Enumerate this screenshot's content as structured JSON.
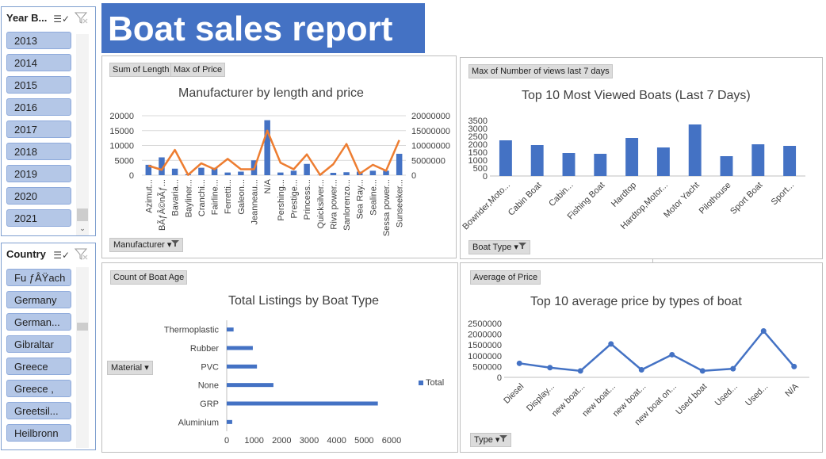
{
  "report_title": "Boat sales report",
  "slicers": {
    "year": {
      "header": "Year B...",
      "items": [
        "2013",
        "2014",
        "2015",
        "2016",
        "2017",
        "2018",
        "2019",
        "2020",
        "2021"
      ]
    },
    "country": {
      "header": "Country",
      "items": [
        "Fu ƒÂŸach",
        "Germany",
        "German...",
        "Gibraltar",
        "Greece",
        "Greece ,",
        "Greetsil...",
        "Heilbronn"
      ]
    }
  },
  "panels": {
    "manufacturer": {
      "value_buttons": [
        "Sum of Length",
        "Max of Price"
      ],
      "axis_button": "Manufacturer"
    },
    "views": {
      "value_buttons": [
        "Max of Number  of views last 7 days"
      ],
      "axis_button": "Boat Type"
    },
    "age": {
      "value_buttons": [
        "Count of Boat Age"
      ],
      "axis_button": "Material"
    },
    "price": {
      "value_buttons": [
        "Average of Price"
      ],
      "axis_button": "Type"
    }
  },
  "chart_data": [
    {
      "type": "bar",
      "title": "Manufacturer by length and price",
      "categories": [
        "Azimut...",
        "BÃƒÂ©nÃƒ...",
        "Bavaria...",
        "Bayliner...",
        "Cranchi...",
        "Fairline...",
        "Ferretti...",
        "Galeon...",
        "Jeanneau...",
        "N/A",
        "Pershing...",
        "Prestige...",
        "Princess...",
        "Quicksilver...",
        "Riva power...",
        "Sanlorenzo...",
        "Sea Ray...",
        "Sealine...",
        "Sessa power...",
        "Sunseeker..."
      ],
      "series": [
        {
          "name": "Sum of Length",
          "type": "bar",
          "axis": "left",
          "color": "#4472c4",
          "values": [
            3500,
            6000,
            2200,
            300,
            2500,
            2500,
            900,
            1200,
            5000,
            18500,
            900,
            1500,
            3800,
            100,
            800,
            1000,
            1200,
            1500,
            1500,
            7200
          ]
        },
        {
          "name": "Max of Price",
          "type": "line",
          "axis": "right",
          "color": "#ed7d31",
          "values": [
            3200000,
            1800000,
            8500000,
            100000,
            4000000,
            2000000,
            5500000,
            2000000,
            2000000,
            15000000,
            4200000,
            2000000,
            7000000,
            100000,
            3700000,
            10500000,
            500000,
            3500000,
            1500000,
            11800000
          ]
        }
      ],
      "yleft_ticks": [
        0,
        5000,
        10000,
        15000,
        20000
      ],
      "yright_ticks": [
        0,
        5000000,
        10000000,
        15000000,
        20000000
      ],
      "ylim_left": [
        0,
        20000
      ],
      "ylim_right": [
        0,
        20000000
      ]
    },
    {
      "type": "bar",
      "title": "Top 10 Most Viewed Boats (Last 7 Days)",
      "categories": [
        "Bowrider,Moto...",
        "Cabin Boat",
        "Cabin...",
        "Fishing Boat",
        "Hardtop",
        "Hardtop,Motor...",
        "Motor Yacht",
        "Pilothouse",
        "Sport Boat",
        "Sport..."
      ],
      "values": [
        2250,
        1950,
        1450,
        1400,
        2400,
        1800,
        3250,
        1250,
        2000,
        1900
      ],
      "yticks": [
        0,
        500,
        1000,
        1500,
        2000,
        2500,
        3000,
        3500
      ],
      "ylim": [
        0,
        3500
      ],
      "color": "#4472c4"
    },
    {
      "type": "bar",
      "orientation": "horizontal",
      "title": "Total Listings by Boat Type",
      "categories": [
        "Aluminium",
        "GRP",
        "None",
        "PVC",
        "Rubber",
        "Thermoplastic"
      ],
      "values": [
        200,
        5500,
        1700,
        1100,
        950,
        250
      ],
      "xticks": [
        0,
        1000,
        2000,
        3000,
        4000,
        5000,
        6000
      ],
      "xlim": [
        0,
        6000
      ],
      "legend": "Total",
      "color": "#4472c4"
    },
    {
      "type": "line",
      "title": "Top 10 average price by types of boat",
      "categories": [
        "Diesel",
        "Display...",
        "new boat...",
        "new boat...",
        "new boat...",
        "new boat on...",
        "Used boat",
        "Used...",
        "Used...",
        "N/A"
      ],
      "values": [
        650000,
        450000,
        300000,
        1550000,
        350000,
        1050000,
        300000,
        400000,
        2150000,
        500000
      ],
      "yticks": [
        0,
        500000,
        1000000,
        1500000,
        2000000,
        2500000
      ],
      "ylim": [
        0,
        2500000
      ],
      "color": "#4472c4"
    }
  ]
}
